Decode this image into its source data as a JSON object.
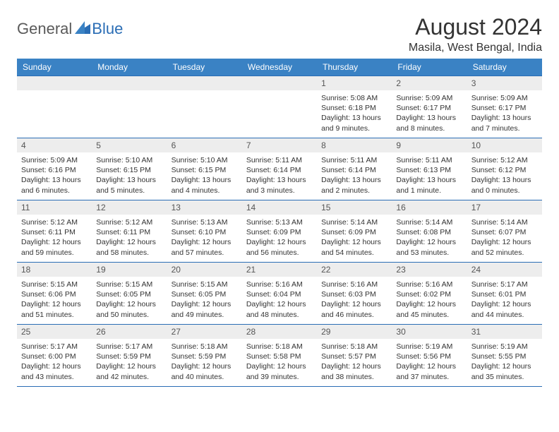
{
  "logo": {
    "general": "General",
    "blue": "Blue"
  },
  "title": "August 2024",
  "location": "Masila, West Bengal, India",
  "colors": {
    "header_bg": "#3a82c4",
    "header_fg": "#ffffff",
    "border": "#2a6db5",
    "daybar_bg": "#ededed",
    "text": "#333333",
    "logo_gray": "#5a5a5a",
    "logo_blue": "#2a6db5"
  },
  "day_headers": [
    "Sunday",
    "Monday",
    "Tuesday",
    "Wednesday",
    "Thursday",
    "Friday",
    "Saturday"
  ],
  "weeks": [
    [
      {
        "blank": true
      },
      {
        "blank": true
      },
      {
        "blank": true
      },
      {
        "blank": true
      },
      {
        "n": "1",
        "sunrise": "5:08 AM",
        "sunset": "6:18 PM",
        "daylight": "13 hours and 9 minutes."
      },
      {
        "n": "2",
        "sunrise": "5:09 AM",
        "sunset": "6:17 PM",
        "daylight": "13 hours and 8 minutes."
      },
      {
        "n": "3",
        "sunrise": "5:09 AM",
        "sunset": "6:17 PM",
        "daylight": "13 hours and 7 minutes."
      }
    ],
    [
      {
        "n": "4",
        "sunrise": "5:09 AM",
        "sunset": "6:16 PM",
        "daylight": "13 hours and 6 minutes."
      },
      {
        "n": "5",
        "sunrise": "5:10 AM",
        "sunset": "6:15 PM",
        "daylight": "13 hours and 5 minutes."
      },
      {
        "n": "6",
        "sunrise": "5:10 AM",
        "sunset": "6:15 PM",
        "daylight": "13 hours and 4 minutes."
      },
      {
        "n": "7",
        "sunrise": "5:11 AM",
        "sunset": "6:14 PM",
        "daylight": "13 hours and 3 minutes."
      },
      {
        "n": "8",
        "sunrise": "5:11 AM",
        "sunset": "6:14 PM",
        "daylight": "13 hours and 2 minutes."
      },
      {
        "n": "9",
        "sunrise": "5:11 AM",
        "sunset": "6:13 PM",
        "daylight": "13 hours and 1 minute."
      },
      {
        "n": "10",
        "sunrise": "5:12 AM",
        "sunset": "6:12 PM",
        "daylight": "13 hours and 0 minutes."
      }
    ],
    [
      {
        "n": "11",
        "sunrise": "5:12 AM",
        "sunset": "6:11 PM",
        "daylight": "12 hours and 59 minutes."
      },
      {
        "n": "12",
        "sunrise": "5:12 AM",
        "sunset": "6:11 PM",
        "daylight": "12 hours and 58 minutes."
      },
      {
        "n": "13",
        "sunrise": "5:13 AM",
        "sunset": "6:10 PM",
        "daylight": "12 hours and 57 minutes."
      },
      {
        "n": "14",
        "sunrise": "5:13 AM",
        "sunset": "6:09 PM",
        "daylight": "12 hours and 56 minutes."
      },
      {
        "n": "15",
        "sunrise": "5:14 AM",
        "sunset": "6:09 PM",
        "daylight": "12 hours and 54 minutes."
      },
      {
        "n": "16",
        "sunrise": "5:14 AM",
        "sunset": "6:08 PM",
        "daylight": "12 hours and 53 minutes."
      },
      {
        "n": "17",
        "sunrise": "5:14 AM",
        "sunset": "6:07 PM",
        "daylight": "12 hours and 52 minutes."
      }
    ],
    [
      {
        "n": "18",
        "sunrise": "5:15 AM",
        "sunset": "6:06 PM",
        "daylight": "12 hours and 51 minutes."
      },
      {
        "n": "19",
        "sunrise": "5:15 AM",
        "sunset": "6:05 PM",
        "daylight": "12 hours and 50 minutes."
      },
      {
        "n": "20",
        "sunrise": "5:15 AM",
        "sunset": "6:05 PM",
        "daylight": "12 hours and 49 minutes."
      },
      {
        "n": "21",
        "sunrise": "5:16 AM",
        "sunset": "6:04 PM",
        "daylight": "12 hours and 48 minutes."
      },
      {
        "n": "22",
        "sunrise": "5:16 AM",
        "sunset": "6:03 PM",
        "daylight": "12 hours and 46 minutes."
      },
      {
        "n": "23",
        "sunrise": "5:16 AM",
        "sunset": "6:02 PM",
        "daylight": "12 hours and 45 minutes."
      },
      {
        "n": "24",
        "sunrise": "5:17 AM",
        "sunset": "6:01 PM",
        "daylight": "12 hours and 44 minutes."
      }
    ],
    [
      {
        "n": "25",
        "sunrise": "5:17 AM",
        "sunset": "6:00 PM",
        "daylight": "12 hours and 43 minutes."
      },
      {
        "n": "26",
        "sunrise": "5:17 AM",
        "sunset": "5:59 PM",
        "daylight": "12 hours and 42 minutes."
      },
      {
        "n": "27",
        "sunrise": "5:18 AM",
        "sunset": "5:59 PM",
        "daylight": "12 hours and 40 minutes."
      },
      {
        "n": "28",
        "sunrise": "5:18 AM",
        "sunset": "5:58 PM",
        "daylight": "12 hours and 39 minutes."
      },
      {
        "n": "29",
        "sunrise": "5:18 AM",
        "sunset": "5:57 PM",
        "daylight": "12 hours and 38 minutes."
      },
      {
        "n": "30",
        "sunrise": "5:19 AM",
        "sunset": "5:56 PM",
        "daylight": "12 hours and 37 minutes."
      },
      {
        "n": "31",
        "sunrise": "5:19 AM",
        "sunset": "5:55 PM",
        "daylight": "12 hours and 35 minutes."
      }
    ]
  ],
  "labels": {
    "sunrise": "Sunrise: ",
    "sunset": "Sunset: ",
    "daylight": "Daylight: "
  }
}
